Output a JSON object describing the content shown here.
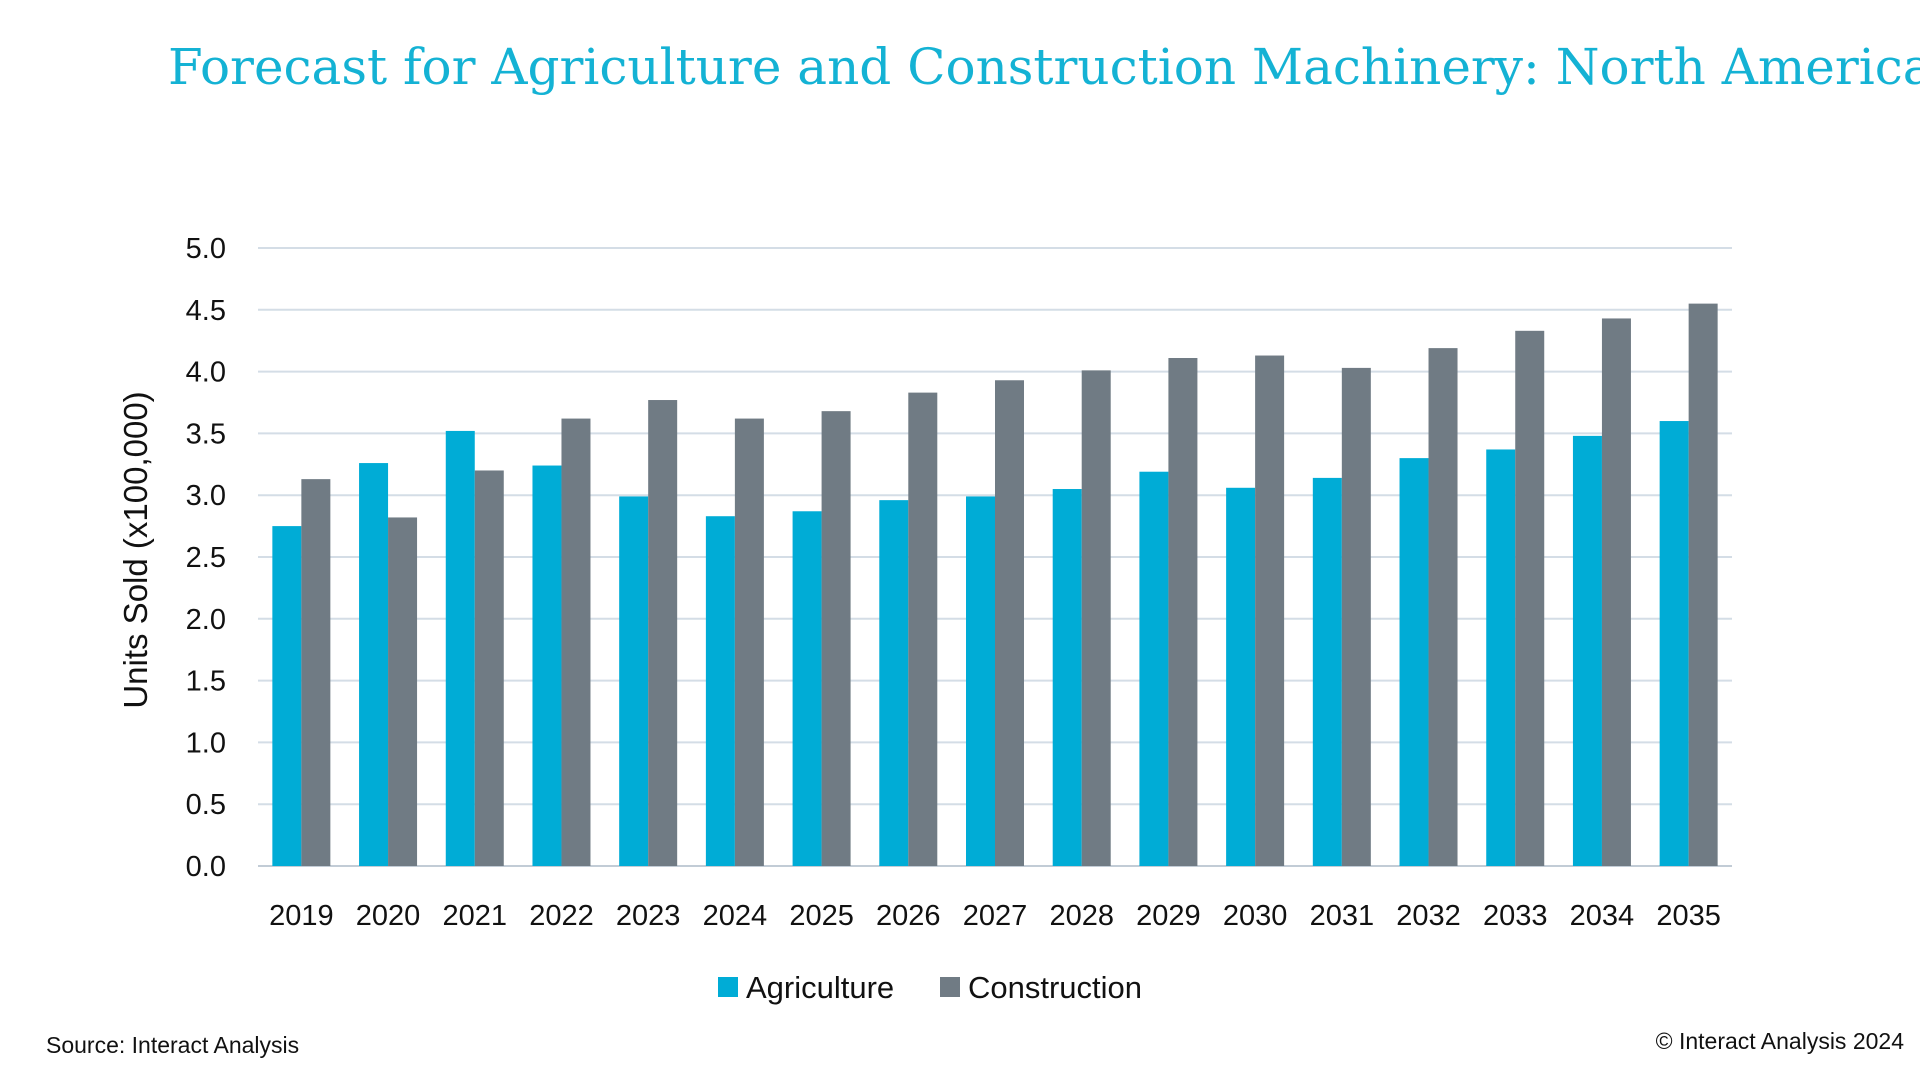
{
  "chart_data": {
    "type": "bar",
    "title": "Forecast for Agriculture and Construction Machinery: North America",
    "xlabel": "",
    "ylabel": "Units Sold (x100,000)",
    "ylim": [
      0,
      5.0
    ],
    "yticks": [
      "0.0",
      "0.5",
      "1.0",
      "1.5",
      "2.0",
      "2.5",
      "3.0",
      "3.5",
      "4.0",
      "4.5",
      "5.0"
    ],
    "grid": true,
    "legend_position": "bottom-center",
    "categories": [
      "2019",
      "2020",
      "2021",
      "2022",
      "2023",
      "2024",
      "2025",
      "2026",
      "2027",
      "2028",
      "2029",
      "2030",
      "2031",
      "2032",
      "2033",
      "2034",
      "2035"
    ],
    "series": [
      {
        "name": "Agriculture",
        "color": "#00acd6",
        "values": [
          2.75,
          3.26,
          3.52,
          3.24,
          2.99,
          2.83,
          2.87,
          2.96,
          2.99,
          3.05,
          3.19,
          3.06,
          3.14,
          3.3,
          3.37,
          3.48,
          3.6
        ]
      },
      {
        "name": "Construction",
        "color": "#707b84",
        "values": [
          3.13,
          2.82,
          3.2,
          3.62,
          3.77,
          3.62,
          3.68,
          3.83,
          3.93,
          4.01,
          4.11,
          4.13,
          4.03,
          4.19,
          4.33,
          4.43,
          4.55
        ]
      }
    ]
  },
  "footer": {
    "source": "Source: Interact Analysis",
    "copyright": "© Interact Analysis 2024"
  },
  "colors": {
    "title": "#14b2d4",
    "gridline": "#d4dde6"
  }
}
